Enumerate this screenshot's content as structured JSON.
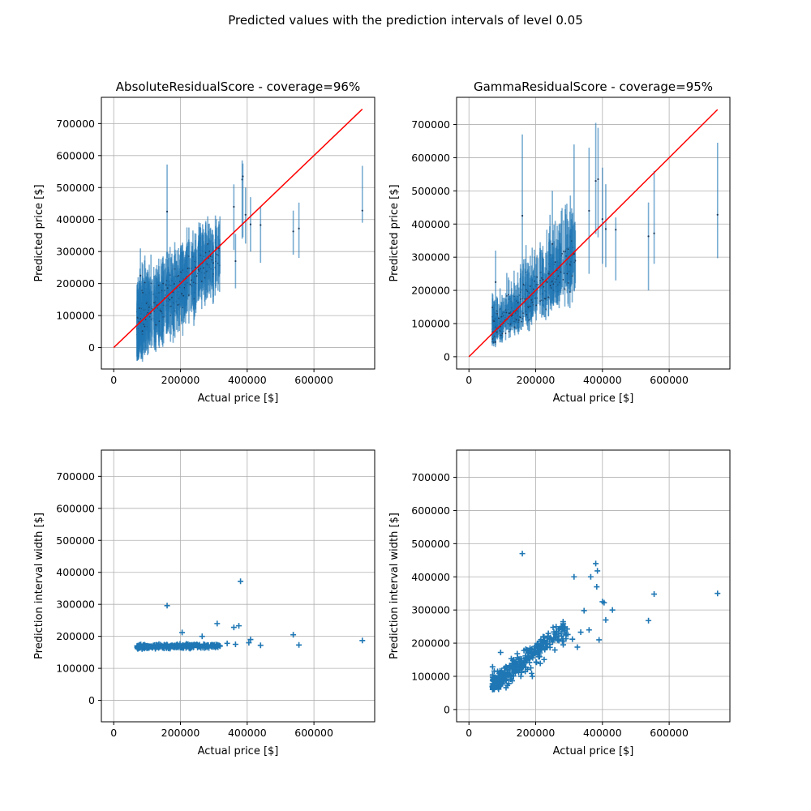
{
  "figure": {
    "suptitle": "Predicted values with the prediction intervals of level 0.05"
  },
  "colors": {
    "points": "#1f77b4",
    "errorbar": "#1f77b4",
    "diagonal": "#ff0000",
    "grid": "#b0b0b0"
  },
  "chart_data": [
    {
      "type": "scatter",
      "panel": "top-left",
      "title": "AbsoluteResidualScore - coverage=96%",
      "xlabel": "Actual price [$]",
      "ylabel": "Predicted price [$]",
      "xlim": [
        -37000,
        782000
      ],
      "ylim": [
        -67000,
        782000
      ],
      "xticks": [
        0,
        200000,
        400000,
        600000
      ],
      "yticks": [
        0,
        100000,
        200000,
        300000,
        400000,
        500000,
        600000,
        700000
      ],
      "grid": true,
      "diagonal": {
        "x": [
          0,
          745000
        ],
        "y": [
          0,
          745000
        ]
      },
      "cluster": {
        "x_range": [
          65000,
          320000
        ],
        "half_width": 85000,
        "count": 360
      },
      "series": [
        {
          "x": [
            68000,
            120000
          ],
          "y": [
            68000,
            120000
          ],
          "x_range": "cluster"
        }
      ],
      "outliers": [
        {
          "x": 80000,
          "y": 225000,
          "lo": 140000,
          "hi": 310000
        },
        {
          "x": 160000,
          "y": 425000,
          "lo": 280000,
          "hi": 572000
        },
        {
          "x": 315000,
          "y": 310000,
          "lo": 225000,
          "hi": 395000
        },
        {
          "x": 360000,
          "y": 440000,
          "lo": 305000,
          "hi": 510000
        },
        {
          "x": 365000,
          "y": 270000,
          "lo": 185000,
          "hi": 355000
        },
        {
          "x": 385000,
          "y": 525000,
          "lo": 340000,
          "hi": 585000
        },
        {
          "x": 387000,
          "y": 535000,
          "lo": 345000,
          "hi": 575000
        },
        {
          "x": 395000,
          "y": 415000,
          "lo": 325000,
          "hi": 500000
        },
        {
          "x": 410000,
          "y": 385000,
          "lo": 300000,
          "hi": 470000
        },
        {
          "x": 440000,
          "y": 383000,
          "lo": 265000,
          "hi": 440000
        },
        {
          "x": 538000,
          "y": 363000,
          "lo": 290000,
          "hi": 428000
        },
        {
          "x": 555000,
          "y": 372000,
          "lo": 280000,
          "hi": 453000
        },
        {
          "x": 745000,
          "y": 428000,
          "lo": 390000,
          "hi": 568000
        }
      ]
    },
    {
      "type": "scatter",
      "panel": "top-right",
      "title": "GammaResidualScore - coverage=95%",
      "xlabel": "Actual price [$]",
      "ylabel": "Predicted price [$]",
      "xlim": [
        -37000,
        782000
      ],
      "ylim": [
        -37000,
        782000
      ],
      "xticks": [
        0,
        200000,
        400000,
        600000
      ],
      "yticks": [
        0,
        100000,
        200000,
        300000,
        400000,
        500000,
        600000,
        700000
      ],
      "grid": true,
      "diagonal": {
        "x": [
          0,
          745000
        ],
        "y": [
          0,
          745000
        ]
      },
      "cluster": {
        "x_range": [
          65000,
          320000
        ],
        "count": 360
      },
      "outliers": [
        {
          "x": 80000,
          "y": 225000,
          "lo": 155000,
          "hi": 320000
        },
        {
          "x": 160000,
          "y": 425000,
          "lo": 180000,
          "hi": 670000
        },
        {
          "x": 250000,
          "y": 340000,
          "lo": 250000,
          "hi": 500000
        },
        {
          "x": 315000,
          "y": 310000,
          "lo": 200000,
          "hi": 640000
        },
        {
          "x": 360000,
          "y": 440000,
          "lo": 250000,
          "hi": 630000
        },
        {
          "x": 380000,
          "y": 530000,
          "lo": 370000,
          "hi": 705000
        },
        {
          "x": 387000,
          "y": 535000,
          "lo": 360000,
          "hi": 690000
        },
        {
          "x": 400000,
          "y": 415000,
          "lo": 280000,
          "hi": 570000
        },
        {
          "x": 410000,
          "y": 385000,
          "lo": 270000,
          "hi": 520000
        },
        {
          "x": 440000,
          "y": 383000,
          "lo": 230000,
          "hi": 420000
        },
        {
          "x": 538000,
          "y": 363000,
          "lo": 200000,
          "hi": 465000
        },
        {
          "x": 555000,
          "y": 372000,
          "lo": 280000,
          "hi": 560000
        },
        {
          "x": 745000,
          "y": 428000,
          "lo": 297000,
          "hi": 645000
        }
      ]
    },
    {
      "type": "scatter",
      "panel": "bottom-left",
      "title": "",
      "xlabel": "Actual price [$]",
      "ylabel": "Prediction interval width [$]",
      "xlim": [
        -37000,
        782000
      ],
      "ylim": [
        -67000,
        782000
      ],
      "xticks": [
        0,
        200000,
        400000,
        600000
      ],
      "yticks": [
        0,
        100000,
        200000,
        300000,
        400000,
        500000,
        600000,
        700000
      ],
      "grid": true,
      "marker": "+",
      "cluster": {
        "x_range": [
          70000,
          320000
        ],
        "y_center": 168000,
        "y_spread": 8000,
        "count": 260
      },
      "points": [
        {
          "x": 160000,
          "y": 296000
        },
        {
          "x": 205000,
          "y": 212000
        },
        {
          "x": 265000,
          "y": 200000
        },
        {
          "x": 310000,
          "y": 240000
        },
        {
          "x": 360000,
          "y": 228000
        },
        {
          "x": 375000,
          "y": 233000
        },
        {
          "x": 380000,
          "y": 372000
        },
        {
          "x": 410000,
          "y": 190000
        },
        {
          "x": 405000,
          "y": 180000
        },
        {
          "x": 440000,
          "y": 172000
        },
        {
          "x": 538000,
          "y": 205000
        },
        {
          "x": 555000,
          "y": 173000
        },
        {
          "x": 745000,
          "y": 187000
        },
        {
          "x": 340000,
          "y": 178000
        },
        {
          "x": 365000,
          "y": 175000
        }
      ]
    },
    {
      "type": "scatter",
      "panel": "bottom-right",
      "title": "",
      "xlabel": "Actual price [$]",
      "ylabel": "Prediction interval width [$]",
      "xlim": [
        -37000,
        782000
      ],
      "ylim": [
        -37000,
        782000
      ],
      "xticks": [
        0,
        200000,
        400000,
        600000
      ],
      "yticks": [
        0,
        100000,
        200000,
        300000,
        400000,
        500000,
        600000,
        700000
      ],
      "grid": true,
      "marker": "+",
      "cluster": {
        "x_range": [
          70000,
          300000
        ],
        "slope": 0.78,
        "intercept": 15000,
        "spread": 35000,
        "count": 330
      },
      "points": [
        {
          "x": 160000,
          "y": 470000
        },
        {
          "x": 315000,
          "y": 400000
        },
        {
          "x": 345000,
          "y": 298000
        },
        {
          "x": 360000,
          "y": 240000
        },
        {
          "x": 365000,
          "y": 400000
        },
        {
          "x": 380000,
          "y": 440000
        },
        {
          "x": 383000,
          "y": 370000
        },
        {
          "x": 385000,
          "y": 418000
        },
        {
          "x": 390000,
          "y": 210000
        },
        {
          "x": 400000,
          "y": 325000
        },
        {
          "x": 405000,
          "y": 322000
        },
        {
          "x": 410000,
          "y": 270000
        },
        {
          "x": 430000,
          "y": 300000
        },
        {
          "x": 538000,
          "y": 268000
        },
        {
          "x": 555000,
          "y": 348000
        },
        {
          "x": 745000,
          "y": 350000
        },
        {
          "x": 95000,
          "y": 172000
        },
        {
          "x": 190000,
          "y": 100000
        },
        {
          "x": 325000,
          "y": 188000
        },
        {
          "x": 310000,
          "y": 212000
        },
        {
          "x": 335000,
          "y": 233000
        }
      ]
    }
  ]
}
